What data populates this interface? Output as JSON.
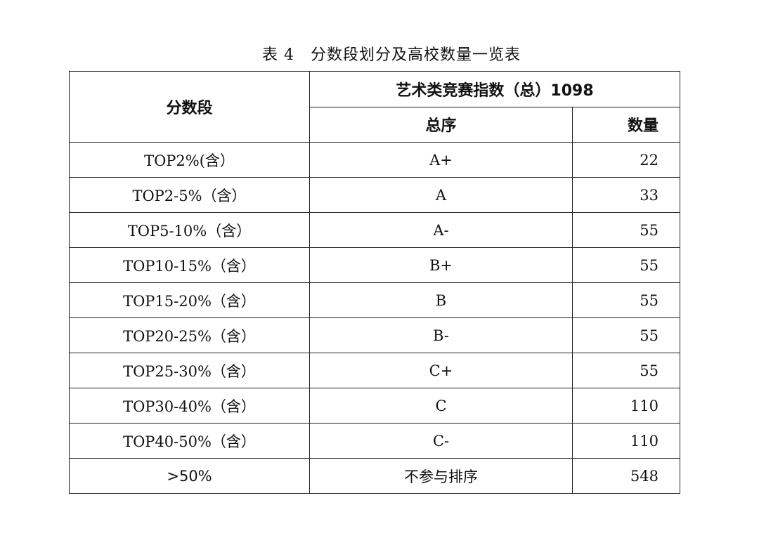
{
  "title": "表 4　分数段划分及高校数量一览表",
  "header": {
    "col1": "分数段",
    "group": "艺术类竞赛指数（总）1098",
    "col2": "总序",
    "col3": "数量"
  },
  "rows": [
    {
      "range": "TOP2%(含）",
      "rank": "A+",
      "count": "22"
    },
    {
      "range": "TOP2-5%（含）",
      "rank": "A",
      "count": "33"
    },
    {
      "range": "TOP5-10%（含）",
      "rank": "A-",
      "count": "55"
    },
    {
      "range": "TOP10-15%（含）",
      "rank": "B+",
      "count": "55"
    },
    {
      "range": "TOP15-20%（含）",
      "rank": "B",
      "count": "55"
    },
    {
      "range": "TOP20-25%（含）",
      "rank": "B-",
      "count": "55"
    },
    {
      "range": "TOP25-30%（含）",
      "rank": "C+",
      "count": "55"
    },
    {
      "range": "TOP30-40%（含）",
      "rank": "C",
      "count": "110"
    },
    {
      "range": "TOP40-50%（含）",
      "rank": "C-",
      "count": "110"
    },
    {
      "range": ">50%",
      "rank": "不参与排序",
      "count": "548"
    }
  ]
}
